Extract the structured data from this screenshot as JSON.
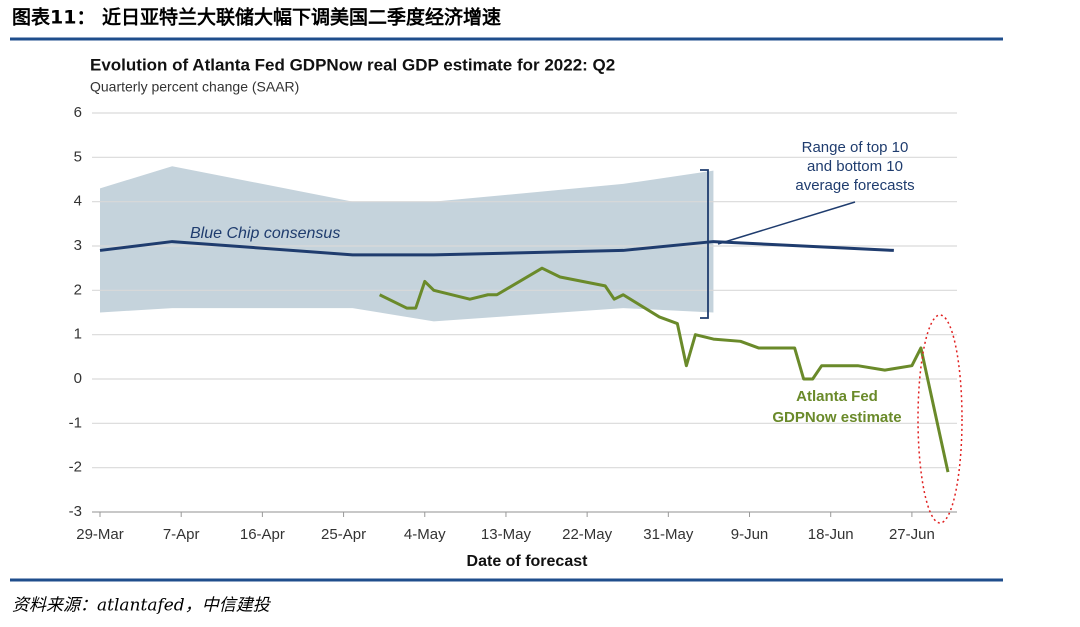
{
  "header": {
    "title": "图表11： 近日亚特兰大联储大幅下调美国二季度经济增速"
  },
  "source": "资料来源：atlantafed，中信建投",
  "chart_data": {
    "type": "line",
    "title": "Evolution of Atlanta Fed GDPNow real GDP estimate for 2022: Q2",
    "subtitle": "Quarterly percent change (SAAR)",
    "xlabel": "Date of forecast",
    "xlim": [
      0,
      95
    ],
    "xticks": [
      {
        "value": 0,
        "label": "29-Mar"
      },
      {
        "value": 9,
        "label": "7-Apr"
      },
      {
        "value": 18,
        "label": "16-Apr"
      },
      {
        "value": 27,
        "label": "25-Apr"
      },
      {
        "value": 36,
        "label": "4-May"
      },
      {
        "value": 45,
        "label": "13-May"
      },
      {
        "value": 54,
        "label": "22-May"
      },
      {
        "value": 63,
        "label": "31-May"
      },
      {
        "value": 72,
        "label": "9-Jun"
      },
      {
        "value": 81,
        "label": "18-Jun"
      },
      {
        "value": 90,
        "label": "27-Jun"
      }
    ],
    "ylim": [
      -3,
      6
    ],
    "yticks": [
      -3,
      -2,
      -1,
      0,
      1,
      2,
      3,
      4,
      5,
      6
    ],
    "grid": true,
    "band": {
      "name": [
        "Range of top 10",
        "and bottom 10",
        "average forecasts"
      ],
      "color": "#c5d3dc",
      "x": [
        0,
        8,
        28,
        37,
        58,
        68
      ],
      "high": [
        4.3,
        4.8,
        4.0,
        4.0,
        4.4,
        4.7
      ],
      "low": [
        1.5,
        1.6,
        1.6,
        1.3,
        1.6,
        1.5
      ]
    },
    "series": [
      {
        "name": "Blue Chip consensus",
        "color": "#1f3c6e",
        "x": [
          0,
          8,
          28,
          37,
          58,
          68,
          88
        ],
        "values": [
          2.9,
          3.1,
          2.8,
          2.8,
          2.9,
          3.1,
          2.9
        ]
      },
      {
        "name": [
          "Atlanta Fed",
          "GDPNow estimate"
        ],
        "color": "#6a8a2a",
        "x": [
          31,
          34,
          35,
          36,
          37,
          41,
          43,
          44,
          49,
          51,
          56,
          57,
          58,
          62,
          64,
          65,
          66,
          68,
          71,
          73,
          77,
          78,
          79,
          80,
          84,
          87,
          90,
          91,
          94
        ],
        "values": [
          1.9,
          1.6,
          1.6,
          2.2,
          2.0,
          1.8,
          1.9,
          1.9,
          2.5,
          2.3,
          2.1,
          1.8,
          1.9,
          1.4,
          1.25,
          0.3,
          1.0,
          0.9,
          0.85,
          0.7,
          0.7,
          0,
          0,
          0.3,
          0.3,
          0.2,
          0.3,
          0.7,
          -2.1
        ]
      }
    ]
  }
}
